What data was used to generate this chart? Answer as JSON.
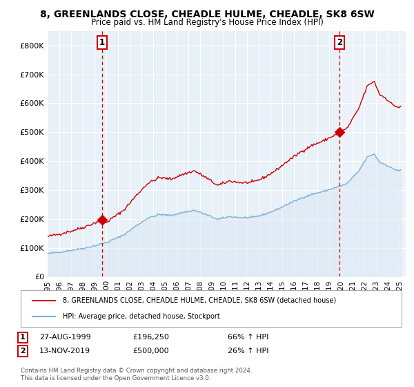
{
  "title": "8, GREENLANDS CLOSE, CHEADLE HULME, CHEADLE, SK8 6SW",
  "subtitle": "Price paid vs. HM Land Registry's House Price Index (HPI)",
  "title_fontsize": 10,
  "subtitle_fontsize": 8.5,
  "ylabel_ticks": [
    "£0",
    "£100K",
    "£200K",
    "£300K",
    "£400K",
    "£500K",
    "£600K",
    "£700K",
    "£800K"
  ],
  "ytick_values": [
    0,
    100000,
    200000,
    300000,
    400000,
    500000,
    600000,
    700000,
    800000
  ],
  "ylim": [
    0,
    850000
  ],
  "xlim_start": 1995.0,
  "xlim_end": 2025.5,
  "sale1_date": 1999.65,
  "sale1_price": 196250,
  "sale2_date": 2019.87,
  "sale2_price": 500000,
  "sale_color": "#cc0000",
  "hpi_color": "#7ab0d4",
  "hpi_fill_color": "#dce9f5",
  "legend_label_sale": "8, GREENLANDS CLOSE, CHEADLE HULME, CHEADLE, SK8 6SW (detached house)",
  "legend_label_hpi": "HPI: Average price, detached house, Stockport",
  "note1_date": "27-AUG-1999",
  "note1_price": "£196,250",
  "note1_pct": "66% ↑ HPI",
  "note2_date": "13-NOV-2019",
  "note2_price": "£500,000",
  "note2_pct": "26% ↑ HPI",
  "footer": "Contains HM Land Registry data © Crown copyright and database right 2024.\nThis data is licensed under the Open Government Licence v3.0.",
  "background_color": "#ffffff",
  "plot_bg_color": "#e8f0f8",
  "grid_color": "#ffffff",
  "dashed_line_color": "#cc0000",
  "hpi_anchors_t": [
    1995.0,
    1996.0,
    1997.0,
    1998.0,
    1999.0,
    2000.0,
    2001.5,
    2002.5,
    2003.5,
    2004.5,
    2005.5,
    2006.5,
    2007.5,
    2008.5,
    2009.5,
    2010.5,
    2011.5,
    2012.5,
    2013.5,
    2014.5,
    2015.5,
    2016.5,
    2017.5,
    2018.5,
    2019.5,
    2020.5,
    2021.5,
    2022.2,
    2022.8,
    2023.3,
    2023.8,
    2024.3,
    2024.8
  ],
  "hpi_anchors_v": [
    80000,
    85000,
    91000,
    98000,
    107000,
    118000,
    145000,
    175000,
    202000,
    215000,
    212000,
    222000,
    230000,
    215000,
    198000,
    208000,
    204000,
    205000,
    216000,
    232000,
    252000,
    270000,
    285000,
    295000,
    308000,
    322000,
    365000,
    413000,
    425000,
    395000,
    388000,
    375000,
    368000
  ]
}
